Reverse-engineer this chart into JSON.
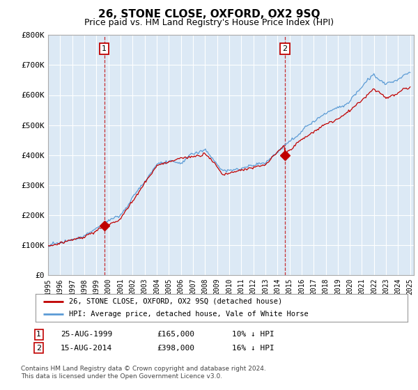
{
  "title": "26, STONE CLOSE, OXFORD, OX2 9SQ",
  "subtitle": "Price paid vs. HM Land Registry's House Price Index (HPI)",
  "ylim": [
    0,
    800000
  ],
  "yticks": [
    0,
    100000,
    200000,
    300000,
    400000,
    500000,
    600000,
    700000,
    800000
  ],
  "ytick_labels": [
    "£0",
    "£100K",
    "£200K",
    "£300K",
    "£400K",
    "£500K",
    "£600K",
    "£700K",
    "£800K"
  ],
  "hpi_color": "#5b9bd5",
  "price_color": "#c00000",
  "plot_bg_color": "#dce9f5",
  "bg_color": "#ffffff",
  "grid_color": "#ffffff",
  "legend_line1": "26, STONE CLOSE, OXFORD, OX2 9SQ (detached house)",
  "legend_line2": "HPI: Average price, detached house, Vale of White Horse",
  "footnote": "Contains HM Land Registry data © Crown copyright and database right 2024.\nThis data is licensed under the Open Government Licence v3.0.",
  "sale1_year": 1999.65,
  "sale1_val": 165000,
  "sale2_year": 2014.62,
  "sale2_val": 398000
}
